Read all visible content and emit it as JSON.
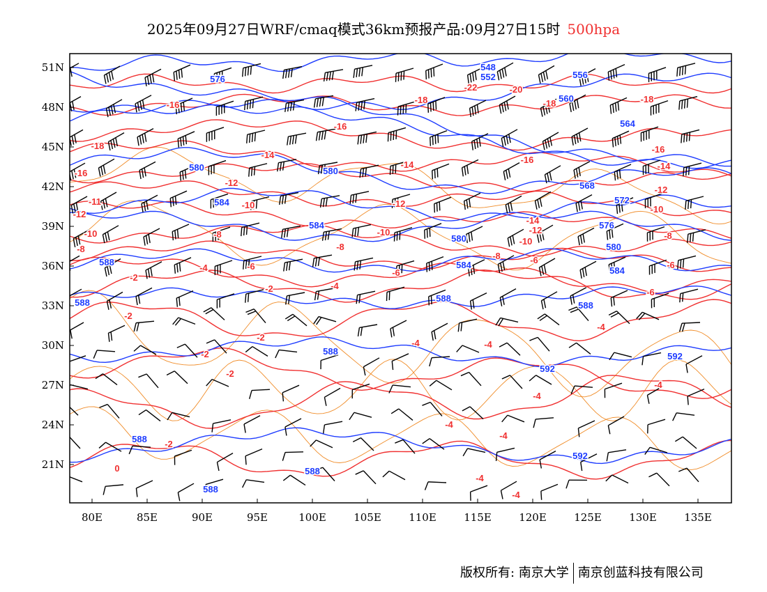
{
  "title": {
    "main": "2025年09月27日WRF/cmaq模式36km预报产品:09月27日15时",
    "level": "500hpa"
  },
  "axes": {
    "latitudes": [
      "51N",
      "48N",
      "45N",
      "42N",
      "39N",
      "36N",
      "33N",
      "30N",
      "27N",
      "24N",
      "21N"
    ],
    "longitudes": [
      "80E",
      "85E",
      "90E",
      "95E",
      "100E",
      "105E",
      "110E",
      "115E",
      "120E",
      "125E",
      "130E",
      "135E"
    ]
  },
  "height_labels": [
    "576",
    "548",
    "552",
    "556",
    "560",
    "564",
    "580",
    "580",
    "568",
    "584",
    "572",
    "584",
    "576",
    "580",
    "580",
    "588",
    "584",
    "584",
    "588",
    "588",
    "588",
    "588",
    "592",
    "592",
    "588",
    "592",
    "588",
    "588"
  ],
  "temperature_labels": [
    "-16",
    "-18",
    "-20",
    "-22",
    "-18",
    "-18",
    "-16",
    "-18",
    "-16",
    "-14",
    "-14",
    "-16",
    "-16",
    "-14",
    "-12",
    "-12",
    "-11",
    "-12",
    "-10",
    "-12",
    "-10",
    "-14",
    "-12",
    "-10",
    "-8",
    "-10",
    "-10",
    "-8",
    "-8",
    "-8",
    "-8",
    "-6",
    "-6",
    "-6",
    "-6",
    "-4",
    "-2",
    "-2",
    "-6",
    "-4",
    "-2",
    "-2",
    "-4",
    "-4",
    "-4",
    "-2",
    "-2",
    "-4",
    "-4",
    "-4",
    "-4",
    "-2",
    "0",
    "-4",
    "-4"
  ],
  "colors": {
    "height": "#1e3cff",
    "temperature": "#f03030",
    "border": "#f08c28",
    "wind": "#000000"
  },
  "footer": {
    "left": "版权所有: 南京大学",
    "right": "南京创蓝科技有限公司"
  }
}
